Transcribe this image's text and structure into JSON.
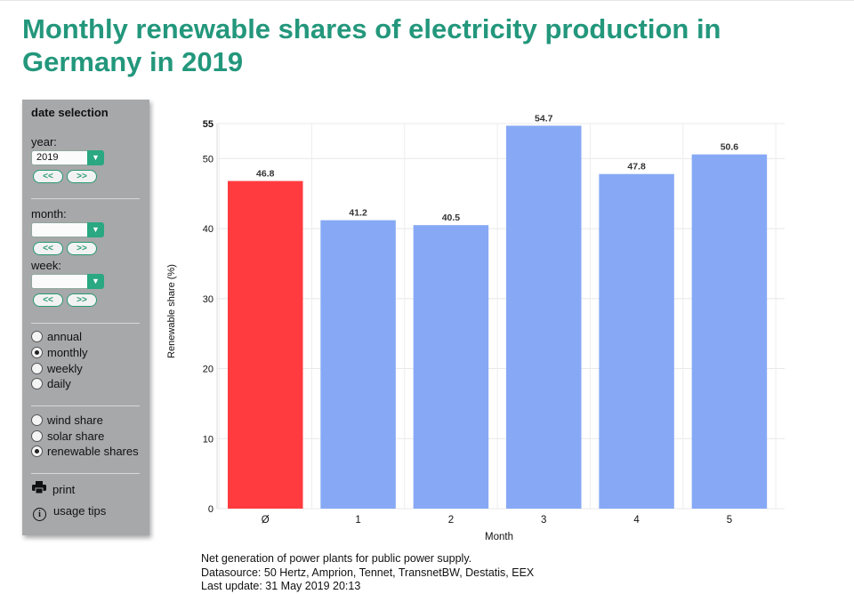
{
  "page": {
    "title": "Monthly renewable shares of electricity production in Germany in 2019"
  },
  "sidebar": {
    "heading": "date selection",
    "year_label": "year:",
    "year_value": "2019",
    "month_label": "month:",
    "month_value": "",
    "week_label": "week:",
    "week_value": "",
    "prev_label": "<<",
    "next_label": ">>",
    "period_options": [
      {
        "label": "annual",
        "selected": false
      },
      {
        "label": "monthly",
        "selected": true
      },
      {
        "label": "weekly",
        "selected": false
      },
      {
        "label": "daily",
        "selected": false
      }
    ],
    "share_options": [
      {
        "label": "wind share",
        "selected": false
      },
      {
        "label": "solar share",
        "selected": false
      },
      {
        "label": "renewable shares",
        "selected": true
      }
    ],
    "print_label": "print",
    "usage_tips_label": "usage tips"
  },
  "chart_data": {
    "type": "bar",
    "title": "",
    "xlabel": "Month",
    "ylabel": "Renewable share (%)",
    "categories": [
      "Ø",
      "1",
      "2",
      "3",
      "4",
      "5"
    ],
    "values": [
      46.8,
      41.2,
      40.5,
      54.7,
      47.8,
      50.6
    ],
    "value_labels": [
      "46.8",
      "41.2",
      "40.5",
      "54.7",
      "47.8",
      "50.6"
    ],
    "bar_colors": [
      "#ff3b3f",
      "#87a9f5",
      "#87a9f5",
      "#87a9f5",
      "#87a9f5",
      "#87a9f5"
    ],
    "ylim": [
      0,
      55
    ],
    "yticks": [
      0,
      10,
      20,
      30,
      40,
      50,
      55
    ],
    "grid": true,
    "legend": "none"
  },
  "footer": {
    "line1": "Net generation of power plants for public power supply.",
    "line2": "Datasource: 50 Hertz, Amprion, Tennet, TransnetBW, Destatis, EEX",
    "line3": "Last update: 31 May 2019 20:13"
  },
  "colors": {
    "title": "#23977c",
    "accent_green": "#2aa882",
    "average_bar": "#ff3b3f",
    "month_bar": "#87a9f5",
    "sidebar_bg": "#a7a8aa"
  }
}
